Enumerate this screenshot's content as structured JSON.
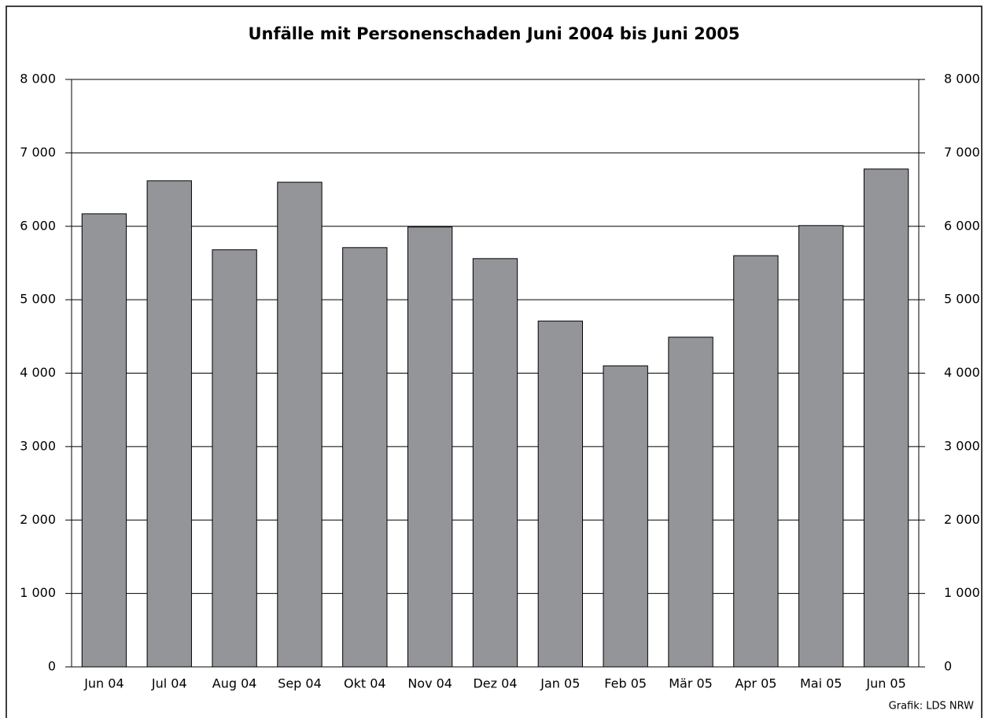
{
  "chart_data": {
    "type": "bar",
    "title": "Unfälle mit Personenschaden Juni 2004 bis Juni 2005",
    "categories": [
      "Jun 04",
      "Jul 04",
      "Aug 04",
      "Sep 04",
      "Okt 04",
      "Nov 04",
      "Dez 04",
      "Jan 05",
      "Feb 05",
      "Mär 05",
      "Apr 05",
      "Mai 05",
      "Jun 05"
    ],
    "values": [
      6170,
      6620,
      5680,
      6600,
      5710,
      5990,
      5560,
      4710,
      4100,
      4490,
      5600,
      6010,
      6780
    ],
    "color": "#939598",
    "ylim": [
      0,
      8000
    ],
    "yticks": [
      0,
      {
        "value": 1000,
        "label": "1 000"
      },
      {
        "value": 2000,
        "label": "2 000"
      },
      {
        "value": 3000,
        "label": "3 000"
      },
      {
        "value": 4000,
        "label": "4 000"
      },
      {
        "value": 5000,
        "label": "5 000"
      },
      {
        "value": 6000,
        "label": "6 000"
      },
      {
        "value": 7000,
        "label": "7 000"
      },
      {
        "value": 8000,
        "label": "8 000"
      }
    ],
    "y2lim": [
      0,
      8000
    ],
    "y2ticks": [
      0,
      {
        "value": 1000,
        "label": "1 000"
      },
      {
        "value": 2000,
        "label": "2 000"
      },
      {
        "value": 3000,
        "label": "3 000"
      },
      {
        "value": 4000,
        "label": "4 000"
      },
      {
        "value": 5000,
        "label": "5 000"
      },
      {
        "value": 6000,
        "label": "6 000"
      },
      {
        "value": 7000,
        "label": "7 000"
      },
      {
        "value": 8000,
        "label": "8 000"
      }
    ],
    "grid": true,
    "source": "Grafik: LDS NRW"
  }
}
